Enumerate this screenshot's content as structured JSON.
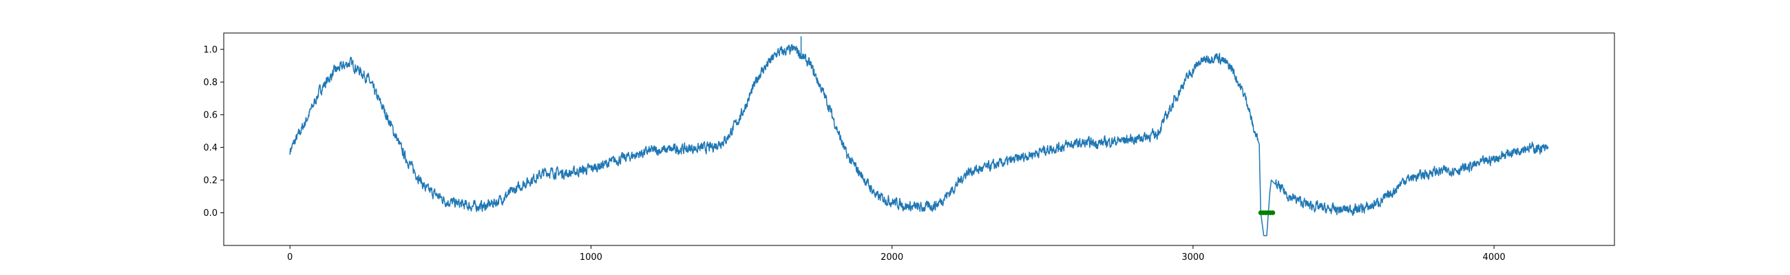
{
  "chart_data": {
    "type": "line",
    "title": "",
    "xlabel": "",
    "ylabel": "",
    "xlim": [
      -220,
      4400
    ],
    "ylim": [
      -0.2,
      1.1
    ],
    "x_ticks": [
      0,
      1000,
      2000,
      3000,
      4000
    ],
    "x_tick_labels": [
      "0",
      "1000",
      "2000",
      "3000",
      "4000"
    ],
    "y_ticks": [
      0.0,
      0.2,
      0.4,
      0.6,
      0.8,
      1.0
    ],
    "y_tick_labels": [
      "0.0",
      "0.2",
      "0.4",
      "0.6",
      "0.8",
      "1.0"
    ],
    "grid": false,
    "legend": "none",
    "series": [
      {
        "color": "#1f77b4",
        "noisy": true,
        "x": [
          0,
          50,
          100,
          150,
          200,
          260,
          320,
          380,
          450,
          520,
          600,
          650,
          700,
          780,
          850,
          920,
          1000,
          1100,
          1200,
          1300,
          1400,
          1450,
          1500,
          1560,
          1620,
          1680,
          1730,
          1780,
          1850,
          1950,
          2050,
          2100,
          2150,
          2200,
          2250,
          2300,
          2400,
          2500,
          2600,
          2700,
          2800,
          2880,
          2920,
          2970,
          3020,
          3080,
          3130,
          3180,
          3200,
          3220,
          3225,
          3235,
          3245,
          3255,
          3260,
          3270,
          3290,
          3320,
          3380,
          3450,
          3520,
          3580,
          3650,
          3700,
          3800,
          3900,
          4000,
          4100,
          4180
        ],
        "y": [
          0.38,
          0.55,
          0.75,
          0.87,
          0.92,
          0.82,
          0.6,
          0.35,
          0.15,
          0.07,
          0.04,
          0.04,
          0.08,
          0.18,
          0.25,
          0.24,
          0.27,
          0.33,
          0.38,
          0.39,
          0.4,
          0.45,
          0.6,
          0.85,
          0.98,
          1.0,
          0.9,
          0.7,
          0.35,
          0.1,
          0.04,
          0.03,
          0.05,
          0.14,
          0.25,
          0.27,
          0.32,
          0.38,
          0.42,
          0.43,
          0.45,
          0.48,
          0.62,
          0.8,
          0.92,
          0.96,
          0.88,
          0.68,
          0.52,
          0.42,
          0.0,
          -0.14,
          -0.14,
          0.12,
          0.2,
          0.18,
          0.15,
          0.1,
          0.05,
          0.02,
          0.02,
          0.03,
          0.1,
          0.2,
          0.25,
          0.27,
          0.33,
          0.4,
          0.39
        ]
      },
      {
        "color": "#1f77b4",
        "noisy": false,
        "x": [
          1698,
          1698
        ],
        "y": [
          0.96,
          1.08
        ]
      },
      {
        "color": "#008000",
        "noisy": false,
        "marker": "o",
        "x": [
          3225,
          3233,
          3241,
          3249,
          3257,
          3265
        ],
        "y": [
          0.0,
          0.0,
          0.0,
          0.0,
          0.0,
          0.0
        ]
      }
    ]
  }
}
